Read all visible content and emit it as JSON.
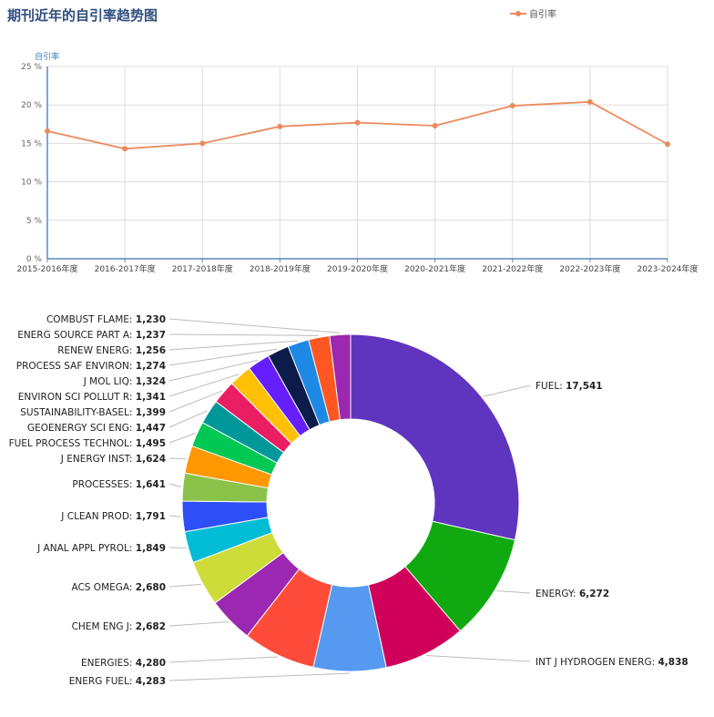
{
  "page": {
    "title": "期刊近年的自引率趋势图",
    "legend_label": "自引率",
    "series_color": "#ec8a5e"
  },
  "chart_data": [
    {
      "type": "line",
      "ylabel": "自引率",
      "ylim": [
        0,
        25
      ],
      "y_ticks": [
        "0 %",
        "5 %",
        "10 %",
        "15 %",
        "20 %",
        "25 %"
      ],
      "grid": true,
      "legend": "top-right",
      "categories": [
        "2015-2016年度",
        "2016-2017年度",
        "2017-2018年度",
        "2018-2019年度",
        "2019-2020年度",
        "2020-2021年度",
        "2021-2022年度",
        "2022-2023年度",
        "2023-2024年度"
      ],
      "series": [
        {
          "name": "自引率",
          "color": "#ec8a5e",
          "values": [
            16.6,
            14.3,
            15.0,
            17.2,
            17.7,
            17.3,
            19.9,
            20.4,
            14.9
          ]
        }
      ]
    },
    {
      "type": "pie",
      "donut": true,
      "slices": [
        {
          "label": "FUEL",
          "value": 17541,
          "display": "17,541",
          "color": "#5f35c0"
        },
        {
          "label": "ENERGY",
          "value": 6272,
          "display": "6,272",
          "color": "#10aa10"
        },
        {
          "label": "INT J HYDROGEN ENERG",
          "value": 4838,
          "display": "4,838",
          "color": "#d0005a"
        },
        {
          "label": "ENERG FUEL",
          "value": 4283,
          "display": "4,283",
          "color": "#5599f0"
        },
        {
          "label": "ENERGIES",
          "value": 4280,
          "display": "4,280",
          "color": "#ff4c3a"
        },
        {
          "label": "CHEM ENG J",
          "value": 2682,
          "display": "2,682",
          "color": "#9c27b0"
        },
        {
          "label": "ACS OMEGA",
          "value": 2680,
          "display": "2,680",
          "color": "#cddc39"
        },
        {
          "label": "J ANAL APPL PYROL",
          "value": 1849,
          "display": "1,849",
          "color": "#00bcd4"
        },
        {
          "label": "J CLEAN PROD",
          "value": 1791,
          "display": "1,791",
          "color": "#2e4ff7"
        },
        {
          "label": "PROCESSES",
          "value": 1641,
          "display": "1,641",
          "color": "#8bc34a"
        },
        {
          "label": "J ENERGY INST",
          "value": 1624,
          "display": "1,624",
          "color": "#ff9800"
        },
        {
          "label": "FUEL PROCESS TECHNOL",
          "value": 1495,
          "display": "1,495",
          "color": "#00c853"
        },
        {
          "label": "GEOENERGY SCI ENG",
          "value": 1447,
          "display": "1,447",
          "color": "#00979b"
        },
        {
          "label": "SUSTAINABILITY-BASEL",
          "value": 1399,
          "display": "1,399",
          "color": "#e91e63"
        },
        {
          "label": "ENVIRON SCI POLLUT R",
          "value": 1341,
          "display": "1,341",
          "color": "#ffc107"
        },
        {
          "label": "J MOL LIQ",
          "value": 1324,
          "display": "1,324",
          "color": "#651fff"
        },
        {
          "label": "PROCESS SAF ENVIRON",
          "value": 1274,
          "display": "1,274",
          "color": "#0d1b4a"
        },
        {
          "label": "RENEW ENERG",
          "value": 1256,
          "display": "1,256",
          "color": "#1e88e5"
        },
        {
          "label": "ENERG SOURCE PART A",
          "value": 1237,
          "display": "1,237",
          "color": "#ff5722"
        },
        {
          "label": "COMBUST FLAME",
          "value": 1230,
          "display": "1,230",
          "color": "#9c27b0"
        }
      ]
    }
  ]
}
